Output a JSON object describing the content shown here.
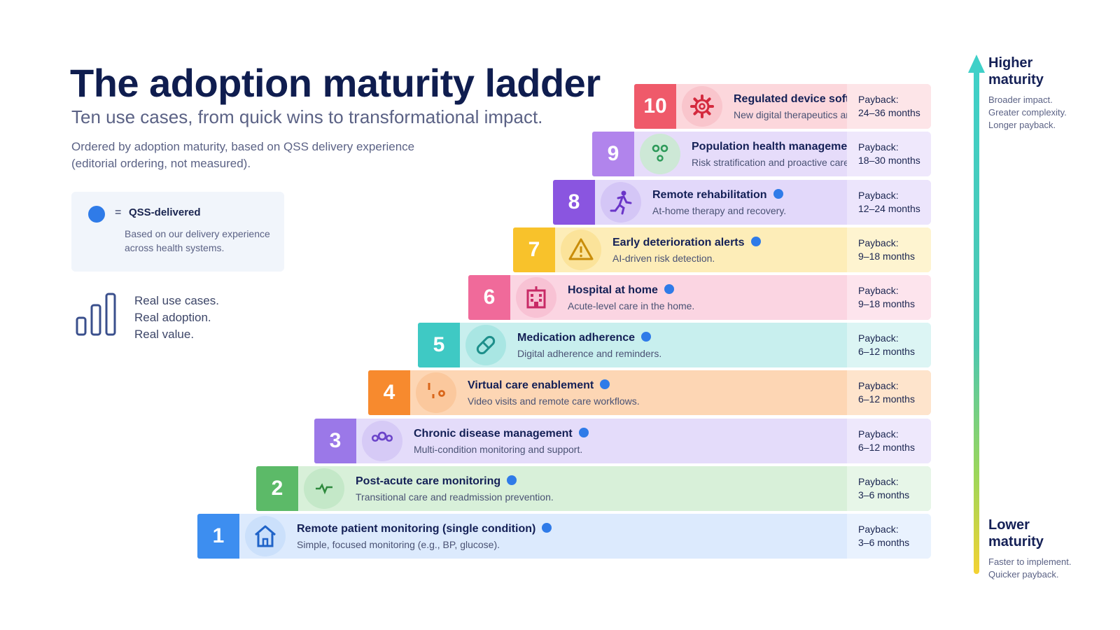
{
  "header": {
    "title": "The adoption maturity ladder",
    "subtitle": "Ten use cases, from quick wins to transformational impact.",
    "note_line1": "Ordered by adoption maturity, based on QSS delivery experience",
    "note_line2": "(editorial ordering, not measured)."
  },
  "legend": {
    "equals": "=",
    "label": "QSS-delivered",
    "description": "Based on our delivery experience across health systems."
  },
  "tagline": [
    "Real use cases.",
    "Real adoption.",
    "Real value."
  ],
  "axis": {
    "top_label_line1": "Higher",
    "top_label_line2": "maturity",
    "top_desc": [
      "Broader impact.",
      "Greater complexity.",
      "Longer payback."
    ],
    "bottom_label_line1": "Lower",
    "bottom_label_line2": "maturity",
    "bottom_desc": [
      "Faster to implement.",
      "Quicker payback."
    ]
  },
  "steps": [
    {
      "number": "1",
      "title": "Remote patient monitoring (single condition)",
      "description": "Simple, focused monitoring (e.g., BP, glucose).",
      "payback_label": "Payback:",
      "payback": "3–6 months",
      "icon": "home-icon",
      "color": "#3d8ef0",
      "bg": "#dceafd",
      "pb_bg": "#e9f2fe",
      "icon_bg": "#cbe0fb",
      "icon_color": "#1f63c8"
    },
    {
      "number": "2",
      "title": "Post-acute care monitoring",
      "description": "Transitional care and readmission prevention.",
      "payback_label": "Payback:",
      "payback": "3–6 months",
      "icon": "heartbeat-icon",
      "color": "#5cba68",
      "bg": "#d8f0d9",
      "pb_bg": "#e7f6e8",
      "icon_bg": "#c4e8c8",
      "icon_color": "#2f8a3e"
    },
    {
      "number": "3",
      "title": "Chronic disease management",
      "description": "Multi-condition monitoring and support.",
      "payback_label": "Payback:",
      "payback": "6–12 months",
      "icon": "group-icon",
      "color": "#9b78e8",
      "bg": "#e4dcfa",
      "pb_bg": "#eee8fc",
      "icon_bg": "#d6caf6",
      "icon_color": "#6b44c9"
    },
    {
      "number": "4",
      "title": "Virtual care enablement",
      "description": "Video visits and remote care workflows.",
      "payback_label": "Payback:",
      "payback": "6–12 months",
      "icon": "stethoscope-icon",
      "color": "#f78a2e",
      "bg": "#fdd6b4",
      "pb_bg": "#fee4cc",
      "icon_bg": "#fbc89d",
      "icon_color": "#d9661a"
    },
    {
      "number": "5",
      "title": "Medication adherence",
      "description": "Digital adherence and reminders.",
      "payback_label": "Payback:",
      "payback": "6–12 months",
      "icon": "pill-icon",
      "color": "#3fc9c4",
      "bg": "#c8efee",
      "pb_bg": "#dcf5f4",
      "icon_bg": "#a9e6e3",
      "icon_color": "#1d8f8b"
    },
    {
      "number": "6",
      "title": "Hospital at home",
      "description": "Acute-level care in the home.",
      "payback_label": "Payback:",
      "payback": "9–18 months",
      "icon": "hospital-icon",
      "color": "#f06a9a",
      "bg": "#fbd5e2",
      "pb_bg": "#fde4ed",
      "icon_bg": "#f8c2d4",
      "icon_color": "#c82a66"
    },
    {
      "number": "7",
      "title": "Early deterioration alerts",
      "description": "AI-driven risk detection.",
      "payback_label": "Payback:",
      "payback": "9–18 months",
      "icon": "warning-icon",
      "color": "#f8c22b",
      "bg": "#fdedb8",
      "pb_bg": "#fef4d0",
      "icon_bg": "#fbe39a",
      "icon_color": "#c98d0a"
    },
    {
      "number": "8",
      "title": "Remote rehabilitation",
      "description": "At-home therapy and recovery.",
      "payback_label": "Payback:",
      "payback": "12–24 months",
      "icon": "runner-icon",
      "color": "#8a55e0",
      "bg": "#e2d8fa",
      "pb_bg": "#ece5fc",
      "icon_bg": "#d4c6f6",
      "icon_color": "#6a35c8"
    },
    {
      "number": "9",
      "title": "Population health management",
      "description": "Risk stratification and proactive care.",
      "payback_label": "Payback:",
      "payback": "18–30 months",
      "icon": "community-icon",
      "color": "#b184ec",
      "bg": "#e6dcfa",
      "pb_bg": "#efe8fc",
      "icon_bg": "#cde8d6",
      "icon_color": "#2f9a5a"
    },
    {
      "number": "10",
      "title": "Regulated device software",
      "description": "New digital therapeutics and SaMD.",
      "payback_label": "Payback:",
      "payback": "24–36 months",
      "icon": "gear-icon",
      "color": "#ef5a6a",
      "bg": "#fcd7dc",
      "pb_bg": "#fde5e8",
      "icon_bg": "#f9c5cc",
      "icon_color": "#d42a3e"
    }
  ]
}
